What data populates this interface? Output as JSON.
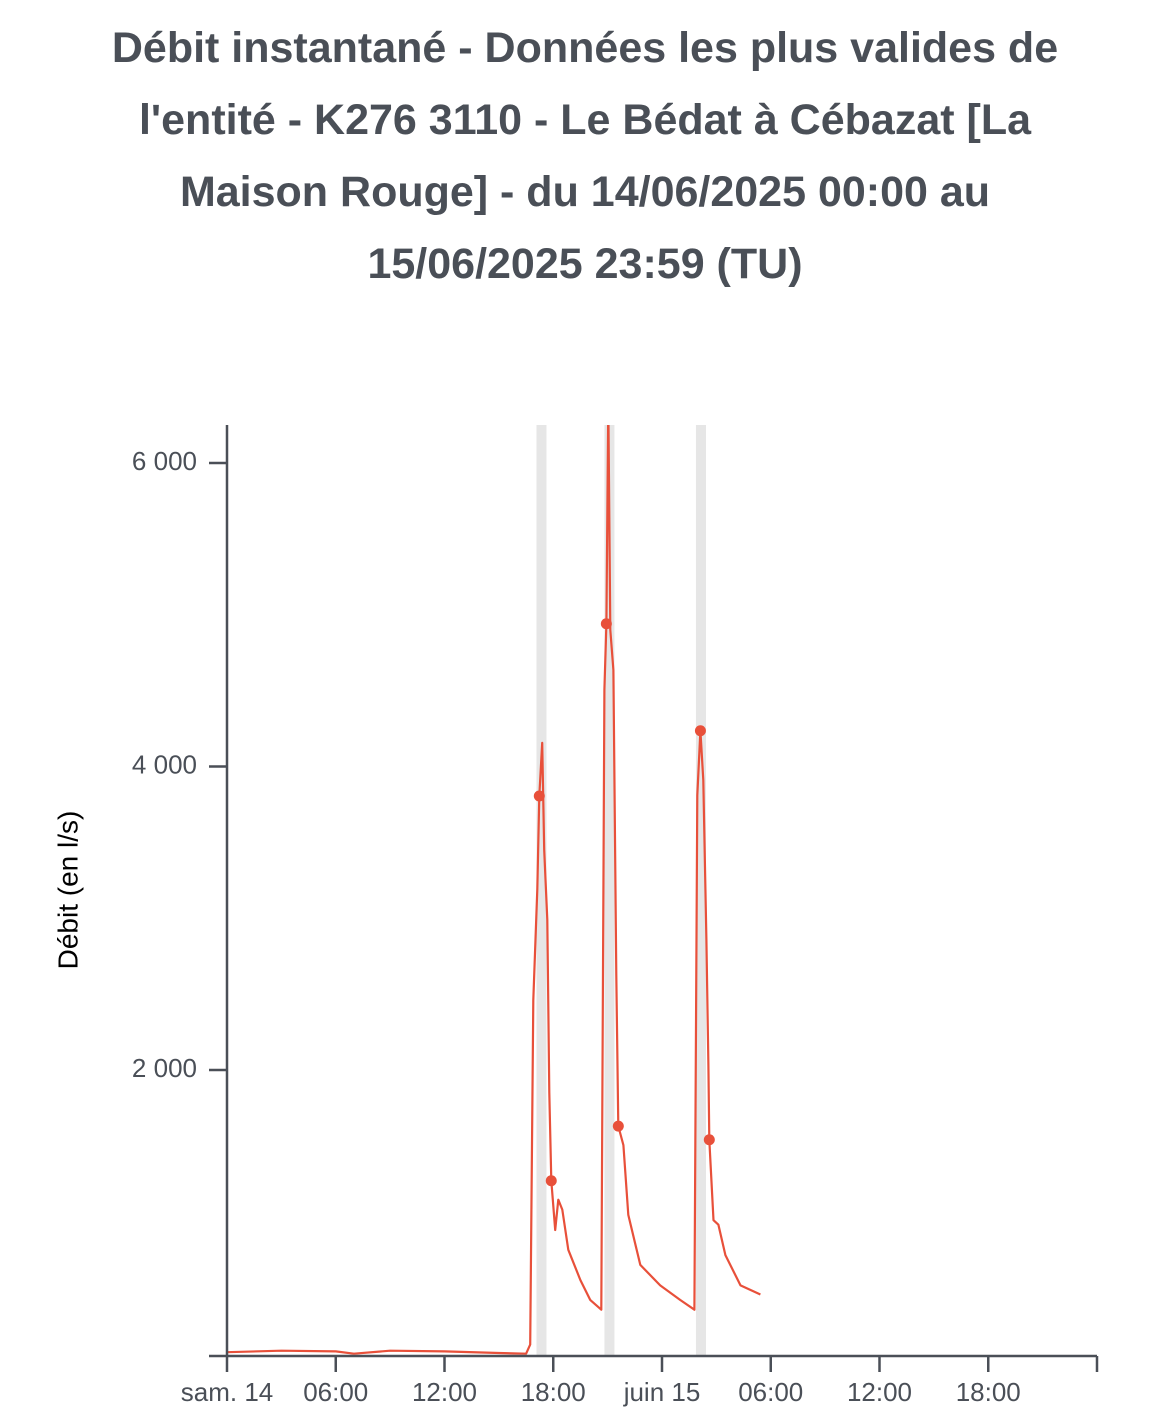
{
  "chart_data": {
    "type": "line",
    "title": "Débit instantané - Données les plus valides de l'entité - K276 3110 - Le Bédat à Cébazat [La Maison Rouge] - du 14/06/2025 00:00 au 15/06/2025 23:59 (TU)",
    "y_label": "Débit (en l/s)",
    "xlim": [
      0,
      48
    ],
    "xticks": [
      {
        "value": 0,
        "label": "sam. 14"
      },
      {
        "value": 6,
        "label": "06:00"
      },
      {
        "value": 12,
        "label": "12:00"
      },
      {
        "value": 18,
        "label": "18:00"
      },
      {
        "value": 24,
        "label": "juin 15"
      },
      {
        "value": 30,
        "label": "06:00"
      },
      {
        "value": 36,
        "label": "12:00"
      },
      {
        "value": 42,
        "label": "18:00"
      }
    ],
    "ylim": [
      115,
      6250
    ],
    "yticks": [
      {
        "value": 2000,
        "label": "2 000"
      },
      {
        "value": 4000,
        "label": "4 000"
      },
      {
        "value": 6000,
        "label": "6 000"
      }
    ],
    "highlight_x": [
      17.35,
      21.1,
      26.15
    ],
    "color": "#e8503a",
    "x": [
      0,
      3,
      6,
      7,
      9,
      12,
      15,
      16.5,
      16.73,
      16.9,
      17.12,
      17.23,
      17.39,
      17.5,
      17.67,
      17.78,
      17.89,
      18.11,
      18.28,
      18.5,
      18.83,
      19.5,
      20.04,
      20.65,
      20.82,
      20.93,
      21.04,
      21.15,
      21.32,
      21.48,
      21.59,
      21.87,
      22.14,
      22.8,
      23.9,
      25.0,
      25.79,
      25.95,
      26.12,
      26.28,
      26.45,
      26.56,
      26.61,
      26.84,
      27.11,
      27.5,
      28.33,
      29.43
    ],
    "values": [
      140,
      150,
      145,
      130,
      150,
      145,
      135,
      130,
      190,
      2460,
      3190,
      3805,
      4155,
      3450,
      2990,
      1850,
      1270,
      945,
      1145,
      1080,
      815,
      615,
      485,
      420,
      4505,
      4940,
      6400,
      4900,
      4635,
      2625,
      1630,
      1505,
      1045,
      715,
      580,
      485,
      420,
      3810,
      4235,
      3910,
      2860,
      2030,
      1540,
      1010,
      980,
      780,
      580,
      520
    ],
    "points": {
      "x": [
        17.23,
        17.89,
        20.93,
        21.59,
        26.12,
        26.61
      ],
      "values": [
        3805,
        1270,
        4940,
        1630,
        4235,
        1540
      ]
    }
  }
}
